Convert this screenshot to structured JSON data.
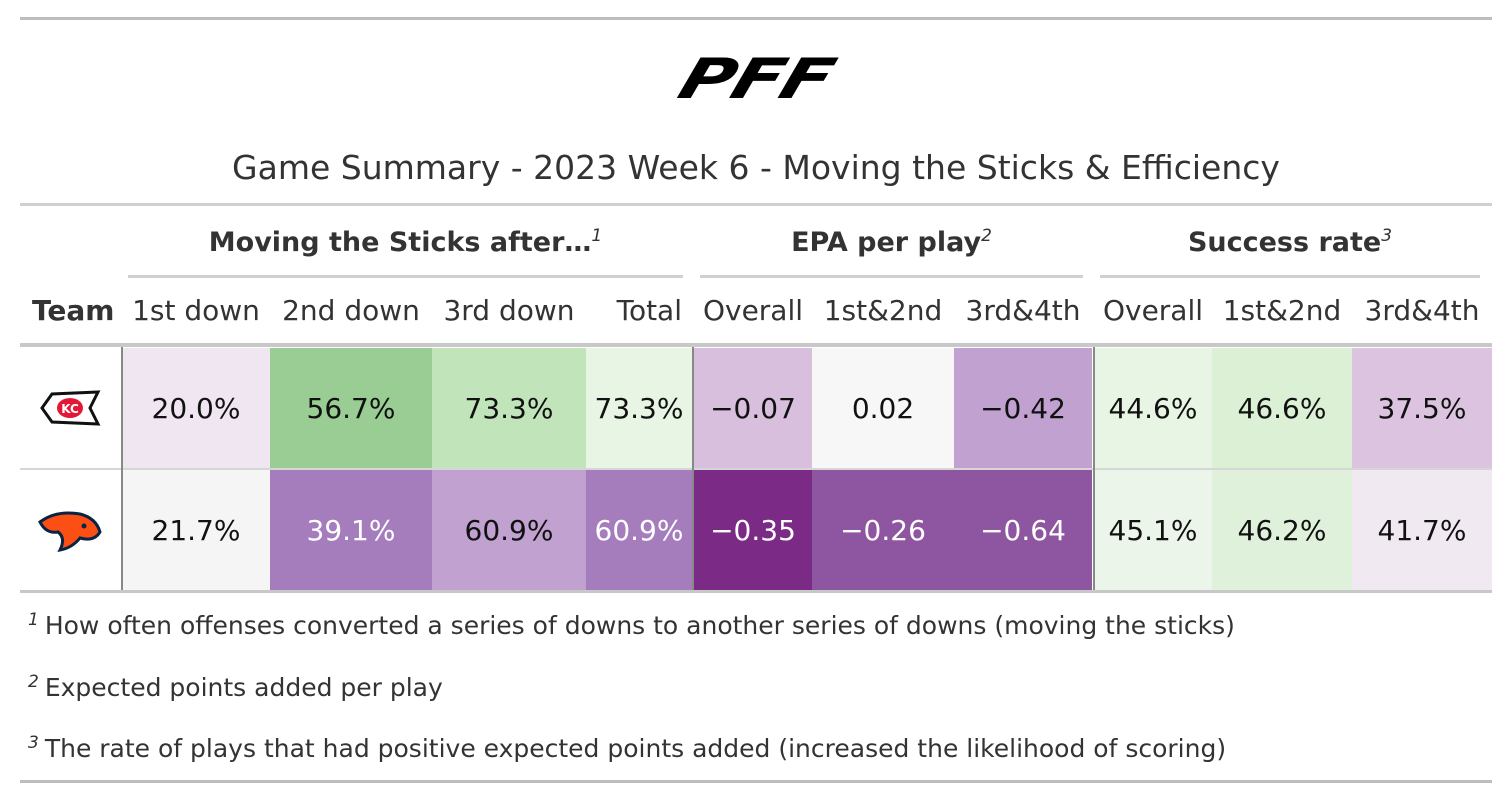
{
  "header": {
    "logo": "PFF",
    "title": "Game Summary - 2023 Week 6 - Moving the Sticks & Efficiency"
  },
  "table": {
    "spanners": [
      {
        "label": "Moving the Sticks after…",
        "mark": "1"
      },
      {
        "label": "EPA per play",
        "mark": "2"
      },
      {
        "label": "Success rate",
        "mark": "3"
      }
    ],
    "columns": [
      "Team",
      "1st down",
      "2nd down",
      "3rd down",
      "Total",
      "Overall",
      "1st&2nd",
      "3rd&4th",
      "Overall",
      "1st&2nd",
      "3rd&4th"
    ],
    "rows": [
      [
        {
          "text": "20.0%",
          "fill": "#efe6f1",
          "color": "#111111"
        },
        {
          "text": "56.7%",
          "fill": "#9acd93",
          "color": "#111111"
        },
        {
          "text": "73.3%",
          "fill": "#c2e4bb",
          "color": "#111111"
        },
        {
          "text": "73.3%",
          "fill": "#e8f4e4",
          "color": "#111111"
        },
        {
          "text": "−0.07",
          "fill": "#d8bfdd",
          "color": "#111111"
        },
        {
          "text": "0.02",
          "fill": "#f7f7f7",
          "color": "#111111"
        },
        {
          "text": "−0.42",
          "fill": "#c0a1cf",
          "color": "#111111"
        },
        {
          "text": "44.6%",
          "fill": "#e8f4e4",
          "color": "#111111"
        },
        {
          "text": "46.6%",
          "fill": "#dbf0d5",
          "color": "#111111"
        },
        {
          "text": "37.5%",
          "fill": "#dcc4e1",
          "color": "#111111"
        }
      ],
      [
        {
          "text": "21.7%",
          "fill": "#f5f5f5",
          "color": "#111111"
        },
        {
          "text": "39.1%",
          "fill": "#a57dbc",
          "color": "#ffffff"
        },
        {
          "text": "60.9%",
          "fill": "#c0a1cf",
          "color": "#111111"
        },
        {
          "text": "60.9%",
          "fill": "#a57dbc",
          "color": "#ffffff"
        },
        {
          "text": "−0.35",
          "fill": "#7b2a86",
          "color": "#ffffff"
        },
        {
          "text": "−0.26",
          "fill": "#8e55a0",
          "color": "#ffffff"
        },
        {
          "text": "−0.64",
          "fill": "#8e55a0",
          "color": "#ffffff"
        },
        {
          "text": "45.1%",
          "fill": "#ecf5e9",
          "color": "#111111"
        },
        {
          "text": "46.2%",
          "fill": "#dff1da",
          "color": "#111111"
        },
        {
          "text": "41.7%",
          "fill": "#f1e9f2",
          "color": "#111111"
        }
      ]
    ]
  },
  "footnotes": [
    {
      "mark": "1",
      "text": "How often offenses converted a series of downs to another series of downs (moving the sticks)"
    },
    {
      "mark": "2",
      "text": "Expected points added per play"
    },
    {
      "mark": "3",
      "text": "The rate of plays that had positive expected points added (increased the likelihood of scoring)"
    }
  ]
}
